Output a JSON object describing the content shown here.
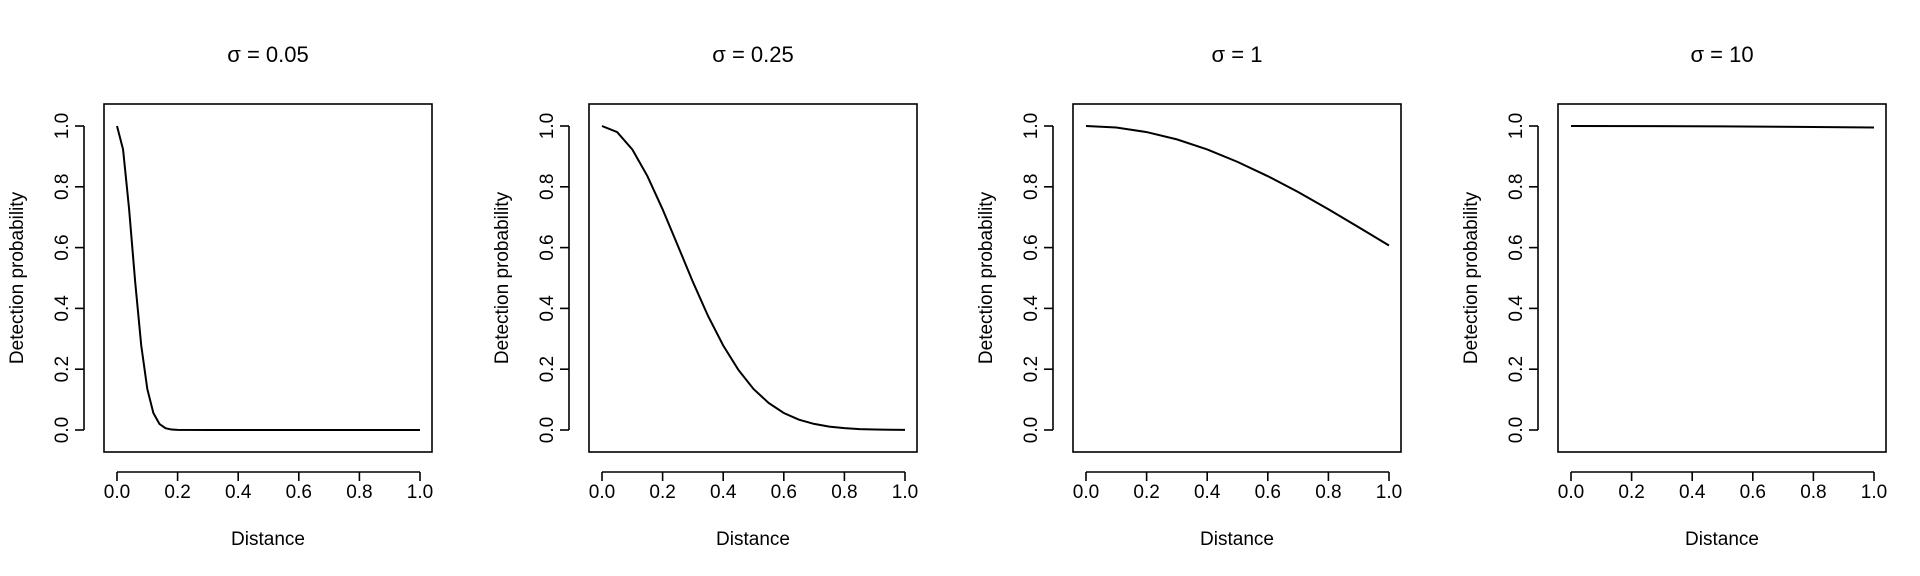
{
  "chart_data": [
    {
      "type": "line",
      "title": "σ = 0.05",
      "xlabel": "Distance",
      "ylabel": "Detection probability",
      "xlim": [
        0,
        1
      ],
      "ylim": [
        0,
        1
      ],
      "x_ticks": [
        "0.0",
        "0.2",
        "0.4",
        "0.6",
        "0.8",
        "1.0"
      ],
      "y_ticks": [
        "0.0",
        "0.2",
        "0.4",
        "0.6",
        "0.8",
        "1.0"
      ],
      "x": [
        0,
        0.02,
        0.04,
        0.06,
        0.08,
        0.1,
        0.12,
        0.14,
        0.16,
        0.18,
        0.2,
        0.3,
        0.4,
        0.5,
        0.6,
        0.7,
        0.8,
        0.9,
        1.0
      ],
      "y": [
        1.0,
        0.923,
        0.726,
        0.487,
        0.278,
        0.135,
        0.056,
        0.02,
        0.006,
        0.0015,
        0.0003,
        0,
        0,
        0,
        0,
        0,
        0,
        0,
        0
      ],
      "grid": false
    },
    {
      "type": "line",
      "title": "σ = 0.25",
      "xlabel": "Distance",
      "ylabel": "Detection probability",
      "xlim": [
        0,
        1
      ],
      "ylim": [
        0,
        1
      ],
      "x_ticks": [
        "0.0",
        "0.2",
        "0.4",
        "0.6",
        "0.8",
        "1.0"
      ],
      "y_ticks": [
        "0.0",
        "0.2",
        "0.4",
        "0.6",
        "0.8",
        "1.0"
      ],
      "x": [
        0,
        0.05,
        0.1,
        0.15,
        0.2,
        0.25,
        0.3,
        0.35,
        0.4,
        0.45,
        0.5,
        0.55,
        0.6,
        0.65,
        0.7,
        0.75,
        0.8,
        0.85,
        0.9,
        0.95,
        1.0
      ],
      "y": [
        1.0,
        0.98,
        0.923,
        0.835,
        0.726,
        0.607,
        0.487,
        0.375,
        0.278,
        0.198,
        0.135,
        0.089,
        0.056,
        0.034,
        0.02,
        0.011,
        0.006,
        0.003,
        0.0015,
        0.0007,
        0.0003
      ],
      "grid": false
    },
    {
      "type": "line",
      "title": "σ = 1",
      "xlabel": "Distance",
      "ylabel": "Detection probability",
      "xlim": [
        0,
        1
      ],
      "ylim": [
        0,
        1
      ],
      "x_ticks": [
        "0.0",
        "0.2",
        "0.4",
        "0.6",
        "0.8",
        "1.0"
      ],
      "y_ticks": [
        "0.0",
        "0.2",
        "0.4",
        "0.6",
        "0.8",
        "1.0"
      ],
      "x": [
        0,
        0.1,
        0.2,
        0.3,
        0.4,
        0.5,
        0.6,
        0.7,
        0.8,
        0.9,
        1.0
      ],
      "y": [
        1.0,
        0.995,
        0.98,
        0.956,
        0.923,
        0.882,
        0.835,
        0.783,
        0.726,
        0.667,
        0.607
      ],
      "grid": false
    },
    {
      "type": "line",
      "title": "σ = 10",
      "xlabel": "Distance",
      "ylabel": "Detection probability",
      "xlim": [
        0,
        1
      ],
      "ylim": [
        0,
        1
      ],
      "x_ticks": [
        "0.0",
        "0.2",
        "0.4",
        "0.6",
        "0.8",
        "1.0"
      ],
      "y_ticks": [
        "0.0",
        "0.2",
        "0.4",
        "0.6",
        "0.8",
        "1.0"
      ],
      "x": [
        0,
        0.25,
        0.5,
        0.75,
        1.0
      ],
      "y": [
        1.0,
        0.9997,
        0.9988,
        0.9972,
        0.995
      ],
      "grid": false
    }
  ]
}
